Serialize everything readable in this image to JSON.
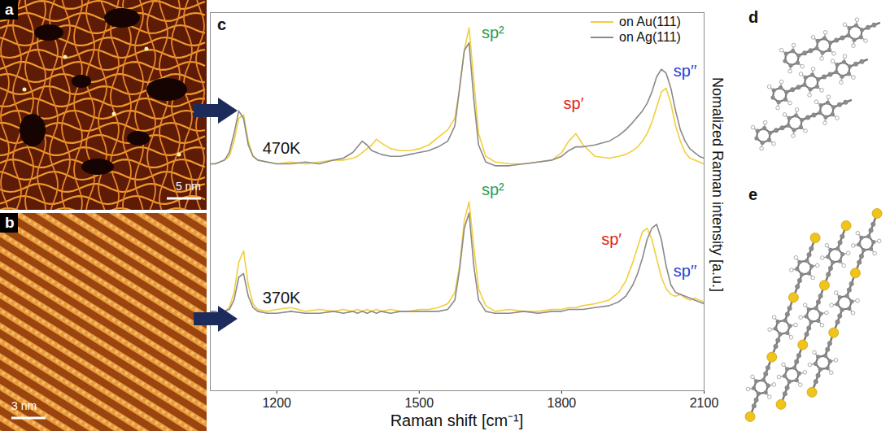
{
  "figure": {
    "panels": [
      {
        "letter": "a",
        "scale_bar": "5 nm"
      },
      {
        "letter": "b",
        "scale_bar": "3 nm"
      },
      {
        "letter": "c"
      },
      {
        "letter": "d"
      },
      {
        "letter": "e"
      }
    ]
  },
  "chart_data": {
    "type": "line",
    "xlabel": "Raman shift [cm⁻¹]",
    "ylabel": "Nomalized Raman intensity [a.u.]",
    "xlim": [
      1060,
      2100
    ],
    "xticks": [
      1200,
      1500,
      1800,
      2100
    ],
    "ylim": [
      0,
      1
    ],
    "tick_labels": "x",
    "legend": "top-right",
    "x": [
      1060,
      1070,
      1080,
      1090,
      1100,
      1110,
      1120,
      1130,
      1140,
      1150,
      1160,
      1180,
      1200,
      1230,
      1260,
      1290,
      1320,
      1340,
      1360,
      1370,
      1380,
      1390,
      1400,
      1410,
      1420,
      1440,
      1460,
      1480,
      1500,
      1520,
      1540,
      1560,
      1575,
      1585,
      1595,
      1605,
      1615,
      1625,
      1640,
      1660,
      1690,
      1720,
      1750,
      1780,
      1800,
      1815,
      1830,
      1845,
      1870,
      1900,
      1920,
      1935,
      1950,
      1960,
      1970,
      1980,
      1990,
      2000,
      2010,
      2020,
      2030,
      2040,
      2050,
      2060,
      2070,
      2080,
      2090,
      2100
    ],
    "groups": [
      {
        "label": "470K",
        "x": 1210,
        "y": 0.64
      },
      {
        "label": "370K",
        "x": 1210,
        "y": 0.245
      }
    ],
    "series": [
      {
        "name": "on Au(111)",
        "color": "#f2cf3c",
        "values": [
          [
            0.6,
            0.6,
            0.605,
            0.61,
            0.62,
            0.66,
            0.72,
            0.73,
            0.66,
            0.62,
            0.61,
            0.605,
            0.6,
            0.605,
            0.6,
            0.605,
            0.61,
            0.61,
            0.615,
            0.62,
            0.63,
            0.64,
            0.65,
            0.665,
            0.655,
            0.64,
            0.635,
            0.635,
            0.64,
            0.65,
            0.67,
            0.69,
            0.72,
            0.8,
            0.9,
            0.96,
            0.82,
            0.68,
            0.62,
            0.605,
            0.6,
            0.6,
            0.605,
            0.61,
            0.63,
            0.66,
            0.68,
            0.65,
            0.62,
            0.615,
            0.62,
            0.625,
            0.635,
            0.645,
            0.66,
            0.68,
            0.71,
            0.75,
            0.79,
            0.8,
            0.76,
            0.7,
            0.66,
            0.63,
            0.615,
            0.61,
            0.605,
            0.6
          ],
          [
            0.21,
            0.205,
            0.21,
            0.21,
            0.22,
            0.26,
            0.34,
            0.37,
            0.28,
            0.23,
            0.215,
            0.21,
            0.215,
            0.22,
            0.21,
            0.215,
            0.21,
            0.215,
            0.21,
            0.215,
            0.21,
            0.215,
            0.21,
            0.215,
            0.21,
            0.215,
            0.21,
            0.21,
            0.215,
            0.215,
            0.22,
            0.23,
            0.26,
            0.33,
            0.45,
            0.5,
            0.38,
            0.27,
            0.225,
            0.21,
            0.215,
            0.21,
            0.21,
            0.215,
            0.215,
            0.22,
            0.22,
            0.225,
            0.23,
            0.24,
            0.26,
            0.29,
            0.34,
            0.38,
            0.42,
            0.43,
            0.4,
            0.35,
            0.3,
            0.27,
            0.255,
            0.25,
            0.255,
            0.245,
            0.24,
            0.245,
            0.24,
            0.235
          ]
        ]
      },
      {
        "name": "on Ag(111)",
        "color": "#8a8a8a",
        "values": [
          [
            0.6,
            0.6,
            0.605,
            0.61,
            0.63,
            0.68,
            0.74,
            0.72,
            0.65,
            0.62,
            0.61,
            0.605,
            0.6,
            0.6,
            0.605,
            0.6,
            0.61,
            0.615,
            0.63,
            0.645,
            0.66,
            0.65,
            0.635,
            0.63,
            0.625,
            0.62,
            0.62,
            0.625,
            0.63,
            0.635,
            0.645,
            0.66,
            0.7,
            0.8,
            0.9,
            0.92,
            0.77,
            0.65,
            0.605,
            0.595,
            0.595,
            0.6,
            0.605,
            0.61,
            0.62,
            0.635,
            0.645,
            0.645,
            0.65,
            0.66,
            0.675,
            0.69,
            0.71,
            0.725,
            0.74,
            0.76,
            0.79,
            0.83,
            0.85,
            0.84,
            0.8,
            0.74,
            0.69,
            0.66,
            0.64,
            0.63,
            0.62,
            0.615
          ],
          [
            0.21,
            0.21,
            0.205,
            0.21,
            0.215,
            0.24,
            0.3,
            0.31,
            0.25,
            0.22,
            0.21,
            0.205,
            0.205,
            0.21,
            0.205,
            0.205,
            0.21,
            0.205,
            0.21,
            0.205,
            0.21,
            0.205,
            0.21,
            0.205,
            0.21,
            0.205,
            0.21,
            0.21,
            0.21,
            0.21,
            0.21,
            0.215,
            0.24,
            0.32,
            0.43,
            0.47,
            0.33,
            0.24,
            0.21,
            0.205,
            0.205,
            0.21,
            0.205,
            0.21,
            0.21,
            0.215,
            0.215,
            0.215,
            0.22,
            0.225,
            0.235,
            0.25,
            0.28,
            0.31,
            0.35,
            0.4,
            0.43,
            0.44,
            0.4,
            0.33,
            0.28,
            0.26,
            0.255,
            0.25,
            0.245,
            0.24,
            0.235,
            0.23
          ]
        ]
      }
    ],
    "annotations": [
      {
        "text": "sp²",
        "x": 1655,
        "y": 0.945,
        "color": "#2e9e4f"
      },
      {
        "text": "sp′",
        "x": 1825,
        "y": 0.76,
        "color": "#e02424"
      },
      {
        "text": "sp′′",
        "x": 2060,
        "y": 0.845,
        "color": "#2a3fd6"
      },
      {
        "text": "sp²",
        "x": 1655,
        "y": 0.53,
        "color": "#2e9e4f"
      },
      {
        "text": "sp′",
        "x": 1905,
        "y": 0.4,
        "color": "#e02424"
      },
      {
        "text": "sp′′",
        "x": 2060,
        "y": 0.315,
        "color": "#2a3fd6"
      }
    ]
  }
}
